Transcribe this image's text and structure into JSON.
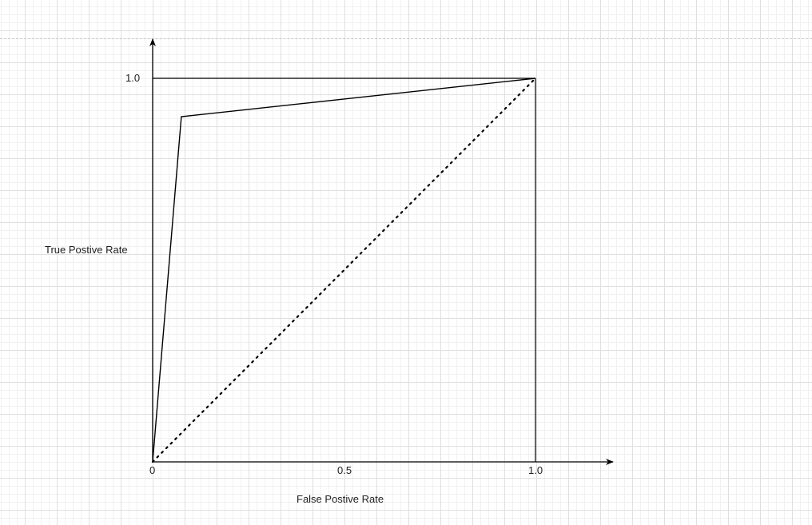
{
  "chart_data": {
    "type": "line",
    "title": "",
    "xlabel": "False Postive Rate",
    "ylabel": "True Postive Rate",
    "xlim": [
      0,
      1.0
    ],
    "ylim": [
      0,
      1.0
    ],
    "x_ticks": [
      "0",
      "0.5",
      "1.0"
    ],
    "y_ticks": [
      "1.0"
    ],
    "grid": true,
    "series": [
      {
        "style": "solid",
        "x": [
          0,
          0.075,
          1.0
        ],
        "y": [
          0,
          0.9,
          1.0
        ]
      },
      {
        "style": "dotted",
        "x": [
          0,
          1.0
        ],
        "y": [
          0,
          1.0
        ]
      }
    ],
    "unit_box": true
  },
  "colors": {
    "ink": "#000000",
    "grid_major": "#e0e0e0",
    "grid_minor": "#f1f1f1",
    "background": "#ffffff"
  }
}
